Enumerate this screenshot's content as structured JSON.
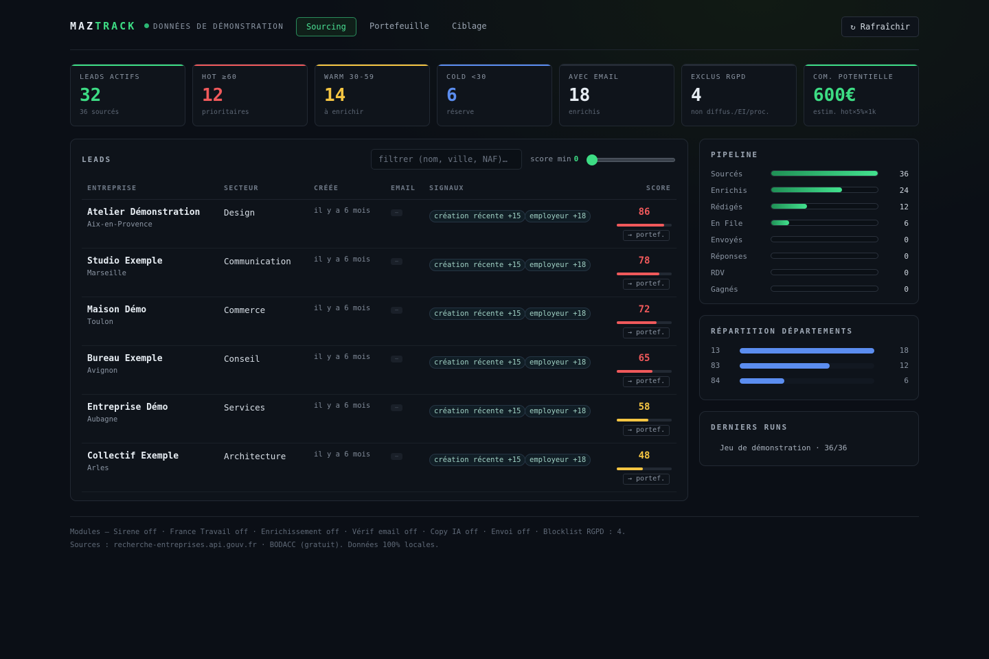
{
  "header": {
    "logo_main": "MAZ",
    "logo_accent": "TRACK",
    "demo_label": "DONNÉES DE DÉMONSTRATION",
    "tabs": [
      {
        "label": "Sourcing",
        "active": true
      },
      {
        "label": "Portefeuille",
        "active": false
      },
      {
        "label": "Ciblage",
        "active": false
      }
    ],
    "refresh_label": "↻ Rafraîchir"
  },
  "kpis": [
    {
      "label": "LEADS ACTIFS",
      "value": "32",
      "sub": "36 sourcés",
      "color": "#3ddc84"
    },
    {
      "label": "HOT ≥60",
      "value": "12",
      "sub": "prioritaires",
      "color": "#f0595b"
    },
    {
      "label": "WARM 30-59",
      "value": "14",
      "sub": "à enrichir",
      "color": "#f5c542"
    },
    {
      "label": "COLD <30",
      "value": "6",
      "sub": "réserve",
      "color": "#5b8def"
    },
    {
      "label": "AVEC EMAIL",
      "value": "18",
      "sub": "enrichis",
      "color": "#e6ecf2"
    },
    {
      "label": "EXCLUS RGPD",
      "value": "4",
      "sub": "non diffus./EI/proc.",
      "color": "#e6ecf2"
    },
    {
      "label": "COM. POTENTIELLE",
      "value": "600€",
      "sub": "estim. hot×5%×1k",
      "color": "#3ddc84"
    }
  ],
  "leads": {
    "title": "LEADS",
    "filter_placeholder": "filtrer (nom, ville, NAF)…",
    "score_min_label": "score min",
    "score_min_value": "0",
    "columns": [
      "ENTREPRISE",
      "SECTEUR",
      "CRÉÉE",
      "EMAIL",
      "SIGNAUX",
      "SCORE"
    ],
    "email_placeholder": "—",
    "portef_label": "→ portef.",
    "rows": [
      {
        "name": "Atelier Démonstration",
        "city": "Aix-en-Provence",
        "sector": "Design",
        "created": "il y a 6 mois",
        "signal1": "création récente +15",
        "signal2": "employeur +18",
        "score": "86",
        "score_pct": 86,
        "color": "#f0595b"
      },
      {
        "name": "Studio Exemple",
        "city": "Marseille",
        "sector": "Communication",
        "created": "il y a 6 mois",
        "signal1": "création récente +15",
        "signal2": "employeur +18",
        "score": "78",
        "score_pct": 78,
        "color": "#f0595b"
      },
      {
        "name": "Maison Démo",
        "city": "Toulon",
        "sector": "Commerce",
        "created": "il y a 6 mois",
        "signal1": "création récente +15",
        "signal2": "employeur +18",
        "score": "72",
        "score_pct": 72,
        "color": "#f0595b"
      },
      {
        "name": "Bureau Exemple",
        "city": "Avignon",
        "sector": "Conseil",
        "created": "il y a 6 mois",
        "signal1": "création récente +15",
        "signal2": "employeur +18",
        "score": "65",
        "score_pct": 65,
        "color": "#f0595b"
      },
      {
        "name": "Entreprise Démo",
        "city": "Aubagne",
        "sector": "Services",
        "created": "il y a 6 mois",
        "signal1": "création récente +15",
        "signal2": "employeur +18",
        "score": "58",
        "score_pct": 58,
        "color": "#f5c542"
      },
      {
        "name": "Collectif Exemple",
        "city": "Arles",
        "sector": "Architecture",
        "created": "il y a 6 mois",
        "signal1": "création récente +15",
        "signal2": "employeur +18",
        "score": "48",
        "score_pct": 48,
        "color": "#f5c542"
      }
    ]
  },
  "pipeline": {
    "title": "PIPELINE",
    "max": 36,
    "items": [
      {
        "label": "Sourcés",
        "value": "36"
      },
      {
        "label": "Enrichis",
        "value": "24"
      },
      {
        "label": "Rédigés",
        "value": "12"
      },
      {
        "label": "En File",
        "value": "6"
      },
      {
        "label": "Envoyés",
        "value": "0"
      },
      {
        "label": "Réponses",
        "value": "0"
      },
      {
        "label": "RDV",
        "value": "0"
      },
      {
        "label": "Gagnés",
        "value": "0"
      }
    ]
  },
  "departments": {
    "title": "RÉPARTITION DÉPARTEMENTS",
    "max": 18,
    "items": [
      {
        "label": "13",
        "value": "18"
      },
      {
        "label": "83",
        "value": "12"
      },
      {
        "label": "84",
        "value": "6"
      }
    ]
  },
  "runs": {
    "title": "DERNIERS RUNS",
    "items": [
      "Jeu de démonstration · 36/36"
    ]
  },
  "footer": {
    "line1": "Modules — Sirene off · France Travail off · Enrichissement off · Vérif email off · Copy IA off · Envoi off  ·  Blocklist RGPD : 4.",
    "line2": "Sources : recherche-entreprises.api.gouv.fr · BODACC (gratuit). Données 100% locales."
  }
}
